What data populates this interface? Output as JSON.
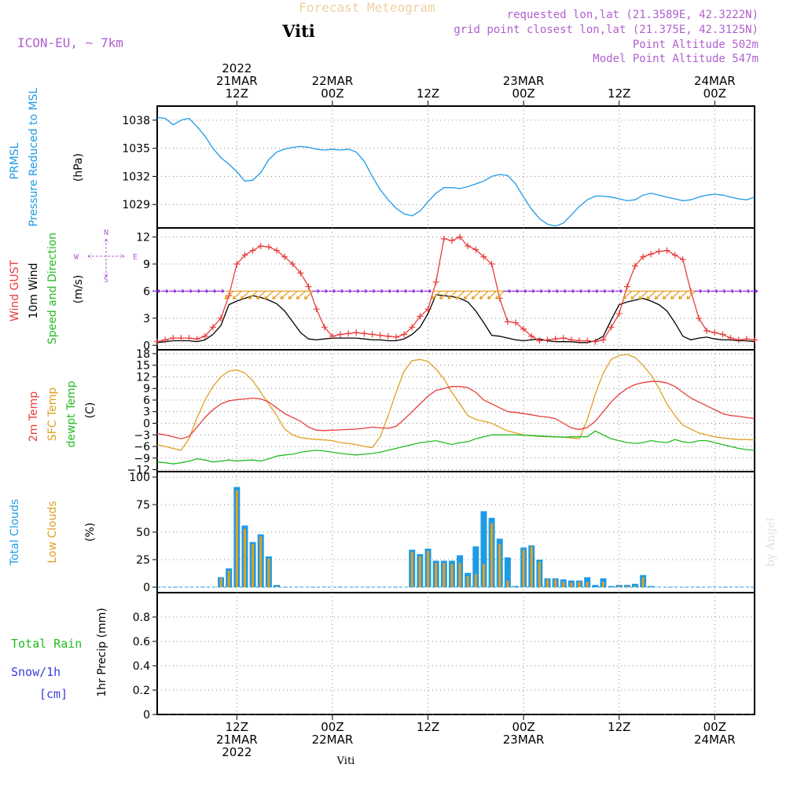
{
  "header": {
    "title": "Forecast Meteogram",
    "station": "Viti",
    "model": "ICON-EU, ~ 7km",
    "requested": "requested lon,lat (21.3589E, 42.3222N)",
    "gridpoint": "grid point closest lon,lat (21.375E, 42.3125N)",
    "point_alt": "Point Altitude 502m",
    "model_alt": "Model Point Altitude 547m",
    "footer_station": "Viti",
    "watermark": "by Angel"
  },
  "time_axis": {
    "top_year": "2022",
    "labels": [
      {
        "hour": 24,
        "top": [
          "21MAR",
          "12Z"
        ],
        "bottom": [
          "12Z",
          "21MAR",
          "2022"
        ]
      },
      {
        "hour": 36,
        "top": [
          "22MAR",
          "00Z"
        ],
        "bottom": [
          "00Z",
          "22MAR"
        ]
      },
      {
        "hour": 48,
        "top": [
          "12Z"
        ],
        "bottom": [
          "12Z"
        ]
      },
      {
        "hour": 60,
        "top": [
          "23MAR",
          "00Z"
        ],
        "bottom": [
          "00Z",
          "23MAR"
        ]
      },
      {
        "hour": 72,
        "top": [
          "12Z"
        ],
        "bottom": [
          "12Z"
        ]
      },
      {
        "hour": 84,
        "top": [
          "24MAR",
          "00Z"
        ],
        "bottom": [
          "00Z",
          "24MAR"
        ]
      }
    ]
  },
  "panels": {
    "pressure": {
      "label1": "PRMSL",
      "label2": "Pressure Reduced to MSL",
      "unit": "(hPa)"
    },
    "wind": {
      "label_gust": "Wind GUST",
      "label_10m": "10m Wind",
      "label_dir": "Speed and Direction",
      "unit": "(m/s)",
      "compass_n": "N",
      "compass_s": "S",
      "compass_w": "W",
      "compass_e": "E"
    },
    "temp": {
      "label_2m": "2m Temp",
      "label_sfc": "SFC Temp",
      "label_dew": "dewpt Temp",
      "unit": "(C)"
    },
    "clouds": {
      "label_total": "Total Clouds",
      "label_low": "Low Clouds",
      "unit": "(%)"
    },
    "precip": {
      "label_rain": "Total  Rain",
      "label_snow": "Snow/1h",
      "label_snow_unit": "[cm]",
      "unit": "1hr Precip (mm)"
    }
  },
  "colors": {
    "pressure": "#1e9be6",
    "gust": "#e83c3c",
    "wind": "#000000",
    "sfc": "#e0a020",
    "dew": "#22bb22",
    "total_clouds": "#1e9be6",
    "low_clouds": "#e0a020",
    "rain": "#22bb22",
    "snow": "#3c3cdc",
    "title": "#f0d0a0",
    "meta": "#b060d0"
  },
  "chart_data": [
    {
      "type": "line",
      "name": "PRMSL",
      "ylim": [
        1026.5,
        1039.5
      ],
      "yticks": [
        "1038",
        "1035",
        "1032",
        "1029"
      ],
      "x": [
        14,
        15,
        16,
        17,
        18,
        19,
        20,
        21,
        22,
        23,
        24,
        25,
        26,
        27,
        28,
        29,
        30,
        31,
        32,
        33,
        34,
        35,
        36,
        37,
        38,
        39,
        40,
        41,
        42,
        43,
        44,
        45,
        46,
        47,
        48,
        49,
        50,
        51,
        52,
        53,
        54,
        55,
        56,
        57,
        58,
        59,
        60,
        61,
        62,
        63,
        64,
        65,
        66,
        67,
        68,
        69,
        70,
        71,
        72,
        73,
        74,
        75,
        76,
        77,
        78,
        79,
        80,
        81,
        82,
        83,
        84,
        85,
        86,
        87,
        88,
        89
      ],
      "values": [
        1038.3,
        1038.2,
        1037.5,
        1038.0,
        1038.2,
        1037.3,
        1036.3,
        1035.0,
        1034.0,
        1033.3,
        1032.5,
        1031.5,
        1031.6,
        1032.4,
        1033.8,
        1034.6,
        1034.9,
        1035.1,
        1035.2,
        1035.1,
        1034.9,
        1034.8,
        1034.9,
        1034.8,
        1034.9,
        1034.6,
        1033.6,
        1032.0,
        1030.6,
        1029.5,
        1028.6,
        1028.0,
        1027.8,
        1028.3,
        1029.3,
        1030.2,
        1030.8,
        1030.8,
        1030.7,
        1030.9,
        1031.2,
        1031.5,
        1032.0,
        1032.2,
        1032.1,
        1031.2,
        1029.8,
        1028.5,
        1027.5,
        1026.9,
        1026.7,
        1027.0,
        1027.9,
        1028.8,
        1029.5,
        1029.9,
        1029.9,
        1029.8,
        1029.6,
        1029.4,
        1029.5,
        1030.0,
        1030.2,
        1030.0,
        1029.8,
        1029.6,
        1029.4,
        1029.5,
        1029.8,
        1030.0,
        1030.1,
        1030.0,
        1029.8,
        1029.6,
        1029.5,
        1029.8
      ]
    },
    {
      "type": "line",
      "name": "Wind GUST / 10m Wind",
      "ylim": [
        -0.5,
        13
      ],
      "yticks": [
        "12",
        "9",
        "6",
        "3",
        "0"
      ],
      "x": [
        14,
        15,
        16,
        17,
        18,
        19,
        20,
        21,
        22,
        23,
        24,
        25,
        26,
        27,
        28,
        29,
        30,
        31,
        32,
        33,
        34,
        35,
        36,
        37,
        38,
        39,
        40,
        41,
        42,
        43,
        44,
        45,
        46,
        47,
        48,
        49,
        50,
        51,
        52,
        53,
        54,
        55,
        56,
        57,
        58,
        59,
        60,
        61,
        62,
        63,
        64,
        65,
        66,
        67,
        68,
        69,
        70,
        71,
        72,
        73,
        74,
        75,
        76,
        77,
        78,
        79,
        80,
        81,
        82,
        83,
        84,
        85,
        86,
        87,
        88,
        89
      ],
      "gust": [
        0.4,
        0.6,
        0.8,
        0.8,
        0.8,
        0.7,
        1.0,
        2.0,
        3.0,
        5.5,
        9.0,
        10.0,
        10.5,
        11.0,
        10.9,
        10.5,
        9.8,
        9.0,
        8.0,
        6.5,
        4.0,
        2.0,
        1.0,
        1.2,
        1.3,
        1.4,
        1.3,
        1.2,
        1.1,
        1.0,
        0.9,
        1.2,
        2.0,
        3.2,
        4.0,
        7.0,
        11.8,
        11.6,
        12.0,
        11.0,
        10.6,
        9.8,
        9.0,
        5.2,
        2.6,
        2.5,
        1.8,
        1.0,
        0.5,
        0.6,
        0.7,
        0.8,
        0.6,
        0.5,
        0.5,
        0.4,
        0.6,
        2.0,
        3.5,
        6.5,
        8.8,
        9.8,
        10.1,
        10.4,
        10.5,
        10.0,
        9.5,
        6.0,
        3.0,
        1.6,
        1.4,
        1.2,
        0.8,
        0.6,
        0.7,
        0.6,
        0.5,
        0.4
      ],
      "wind10m": [
        0.3,
        0.4,
        0.5,
        0.5,
        0.5,
        0.4,
        0.6,
        1.2,
        2.2,
        4.5,
        4.9,
        5.2,
        5.5,
        5.3,
        5.0,
        4.6,
        3.8,
        2.6,
        1.4,
        0.7,
        0.6,
        0.7,
        0.8,
        0.8,
        0.8,
        0.8,
        0.7,
        0.6,
        0.6,
        0.5,
        0.5,
        0.7,
        1.2,
        2.0,
        3.5,
        5.6,
        5.5,
        5.4,
        5.2,
        4.8,
        3.8,
        2.5,
        1.1,
        1.0,
        0.8,
        0.6,
        0.5,
        0.6,
        0.7,
        0.5,
        0.4,
        0.4,
        0.4,
        0.3,
        0.3,
        0.5,
        1.0,
        2.8,
        4.5,
        4.8,
        5.0,
        5.2,
        4.9,
        4.5,
        3.8,
        2.5,
        1.0,
        0.6,
        0.8,
        0.9,
        0.7,
        0.6,
        0.6,
        0.5,
        0.5,
        0.4,
        0.4,
        0.4
      ]
    },
    {
      "type": "line",
      "name": "Temperatures",
      "ylim": [
        -12.5,
        19
      ],
      "yticks": [
        "18",
        "15",
        "12",
        "9",
        "6",
        "3",
        "0",
        "−3",
        "−6",
        "−9",
        "−12"
      ],
      "x": [
        14,
        15,
        16,
        17,
        18,
        19,
        20,
        21,
        22,
        23,
        24,
        25,
        26,
        27,
        28,
        29,
        30,
        31,
        32,
        33,
        34,
        35,
        36,
        37,
        38,
        39,
        40,
        41,
        42,
        43,
        44,
        45,
        46,
        47,
        48,
        49,
        50,
        51,
        52,
        53,
        54,
        55,
        56,
        57,
        58,
        59,
        60,
        61,
        62,
        63,
        64,
        65,
        66,
        67,
        68,
        69,
        70,
        71,
        72,
        73,
        74,
        75,
        76,
        77,
        78,
        79,
        80,
        81,
        82,
        83,
        84,
        85,
        86,
        87,
        88,
        89
      ],
      "t2m": [
        -2.7,
        -3.0,
        -3.5,
        -4.0,
        -3.4,
        -1.0,
        1.5,
        3.5,
        5.0,
        5.8,
        6.1,
        6.3,
        6.5,
        6.3,
        5.5,
        4.0,
        2.5,
        1.5,
        0.5,
        -1.0,
        -1.8,
        -1.9,
        -1.8,
        -1.7,
        -1.6,
        -1.5,
        -1.3,
        -1.0,
        -1.2,
        -1.3,
        -0.8,
        1.0,
        3.0,
        5.0,
        7.0,
        8.5,
        9.0,
        9.5,
        9.5,
        9.2,
        8.0,
        6.0,
        5.0,
        4.0,
        3.0,
        2.8,
        2.5,
        2.2,
        1.8,
        1.6,
        1.2,
        0.0,
        -1.2,
        -1.6,
        -1.1,
        0.5,
        3.0,
        5.5,
        7.5,
        9.0,
        10.0,
        10.5,
        10.8,
        10.8,
        10.4,
        9.5,
        8.0,
        6.5,
        5.5,
        4.5,
        3.5,
        2.5,
        2.0,
        1.8,
        1.5,
        1.2,
        1.0,
        0.7
      ],
      "sfc": [
        -5.5,
        -6.0,
        -6.5,
        -7.0,
        -4.0,
        1.5,
        6.0,
        9.5,
        12.0,
        13.5,
        13.8,
        13.0,
        11.0,
        8.0,
        5.0,
        2.0,
        -1.5,
        -3.0,
        -3.7,
        -4.0,
        -4.2,
        -4.3,
        -4.5,
        -5.0,
        -5.2,
        -5.5,
        -6.0,
        -6.3,
        -3.5,
        2.0,
        8.0,
        13.5,
        16.2,
        16.5,
        16.0,
        14.0,
        11.5,
        8.0,
        5.0,
        2.0,
        1.0,
        0.5,
        0.0,
        -1.0,
        -2.0,
        -2.5,
        -3.0,
        -3.2,
        -3.4,
        -3.5,
        -3.5,
        -3.6,
        -3.8,
        -4.0,
        1.0,
        7.5,
        13.0,
        16.5,
        17.5,
        17.8,
        17.0,
        15.0,
        12.5,
        9.0,
        5.0,
        2.0,
        -0.5,
        -1.5,
        -2.5,
        -3.0,
        -3.5,
        -3.8,
        -4.0,
        -4.2,
        -4.2,
        -4.3,
        -4.3,
        -4.2
      ],
      "dew": [
        -10.0,
        -10.2,
        -10.5,
        -10.2,
        -9.8,
        -9.2,
        -9.5,
        -10.0,
        -9.8,
        -9.5,
        -9.8,
        -9.6,
        -9.5,
        -9.8,
        -9.2,
        -8.5,
        -8.2,
        -8.0,
        -7.5,
        -7.2,
        -7.0,
        -7.2,
        -7.5,
        -7.8,
        -8.0,
        -8.2,
        -8.0,
        -7.8,
        -7.5,
        -7.0,
        -6.5,
        -6.0,
        -5.5,
        -5.0,
        -4.8,
        -4.5,
        -5.0,
        -5.5,
        -5.0,
        -4.8,
        -4.0,
        -3.5,
        -3.0,
        -3.0,
        -3.0,
        -3.0,
        -3.1,
        -3.2,
        -3.3,
        -3.4,
        -3.5,
        -3.6,
        -3.5,
        -3.5,
        -3.5,
        -2.0,
        -3.0,
        -4.0,
        -4.5,
        -5.0,
        -5.2,
        -5.0,
        -4.5,
        -4.8,
        -5.0,
        -4.2,
        -4.8,
        -5.0,
        -4.5,
        -4.5,
        -5.0,
        -5.5,
        -6.0,
        -6.5,
        -6.8,
        -7.0,
        -7.0,
        -7.0
      ]
    },
    {
      "type": "bar",
      "name": "Clouds",
      "ylim": [
        -5,
        105
      ],
      "yticks": [
        "100",
        "75",
        "50",
        "25",
        "0"
      ],
      "x": [
        22,
        23,
        24,
        25,
        26,
        27,
        28,
        29,
        30,
        46,
        47,
        48,
        49,
        50,
        51,
        52,
        53,
        54,
        55,
        56,
        57,
        58,
        59,
        60,
        61,
        62,
        63,
        64,
        65,
        66,
        67,
        68,
        69,
        70,
        71,
        72,
        73,
        74,
        75,
        76
      ],
      "total": [
        9,
        17,
        91,
        56,
        41,
        48,
        28,
        2,
        0,
        34,
        30,
        35,
        24,
        24,
        24,
        29,
        13,
        37,
        69,
        63,
        44,
        27,
        1,
        36,
        38,
        25,
        8,
        8,
        7,
        6,
        6,
        9,
        2,
        8,
        1,
        2,
        2,
        3,
        11,
        1
      ],
      "low": [
        8,
        15,
        88,
        53,
        39,
        46,
        26,
        1,
        0,
        32,
        28,
        33,
        22,
        22,
        21,
        22,
        10,
        12,
        21,
        58,
        39,
        6,
        0,
        34,
        37,
        23,
        7,
        7,
        5,
        4,
        5,
        5,
        0,
        5,
        0,
        1,
        1,
        1,
        9,
        0
      ]
    },
    {
      "type": "bar",
      "name": "1hr Precip",
      "ylim": [
        0,
        1.0
      ],
      "yticks": [
        "0.8",
        "0.6",
        "0.4",
        "0.2",
        "0"
      ],
      "values": []
    }
  ]
}
